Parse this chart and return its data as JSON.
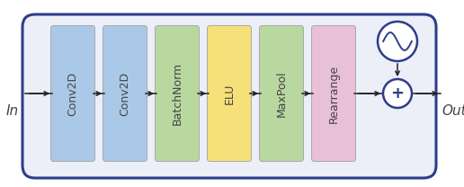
{
  "border_color": "#2d3e8a",
  "border_facecolor": "#eceef8",
  "blocks": [
    {
      "label": "Conv2D",
      "color": "#aac8e8"
    },
    {
      "label": "Conv2D",
      "color": "#aac8e8"
    },
    {
      "label": "BatchNorm",
      "color": "#b8d8a0"
    },
    {
      "label": "ELU",
      "color": "#f5e07a"
    },
    {
      "label": "MaxPool",
      "color": "#b8d8a0"
    },
    {
      "label": "Rearrange",
      "color": "#e8c0d8"
    }
  ],
  "arrow_color": "#222222",
  "text_color": "#444444",
  "circle_color": "#2d3e8a",
  "font_size": 9.0,
  "label_in": "In",
  "label_out": "Out"
}
